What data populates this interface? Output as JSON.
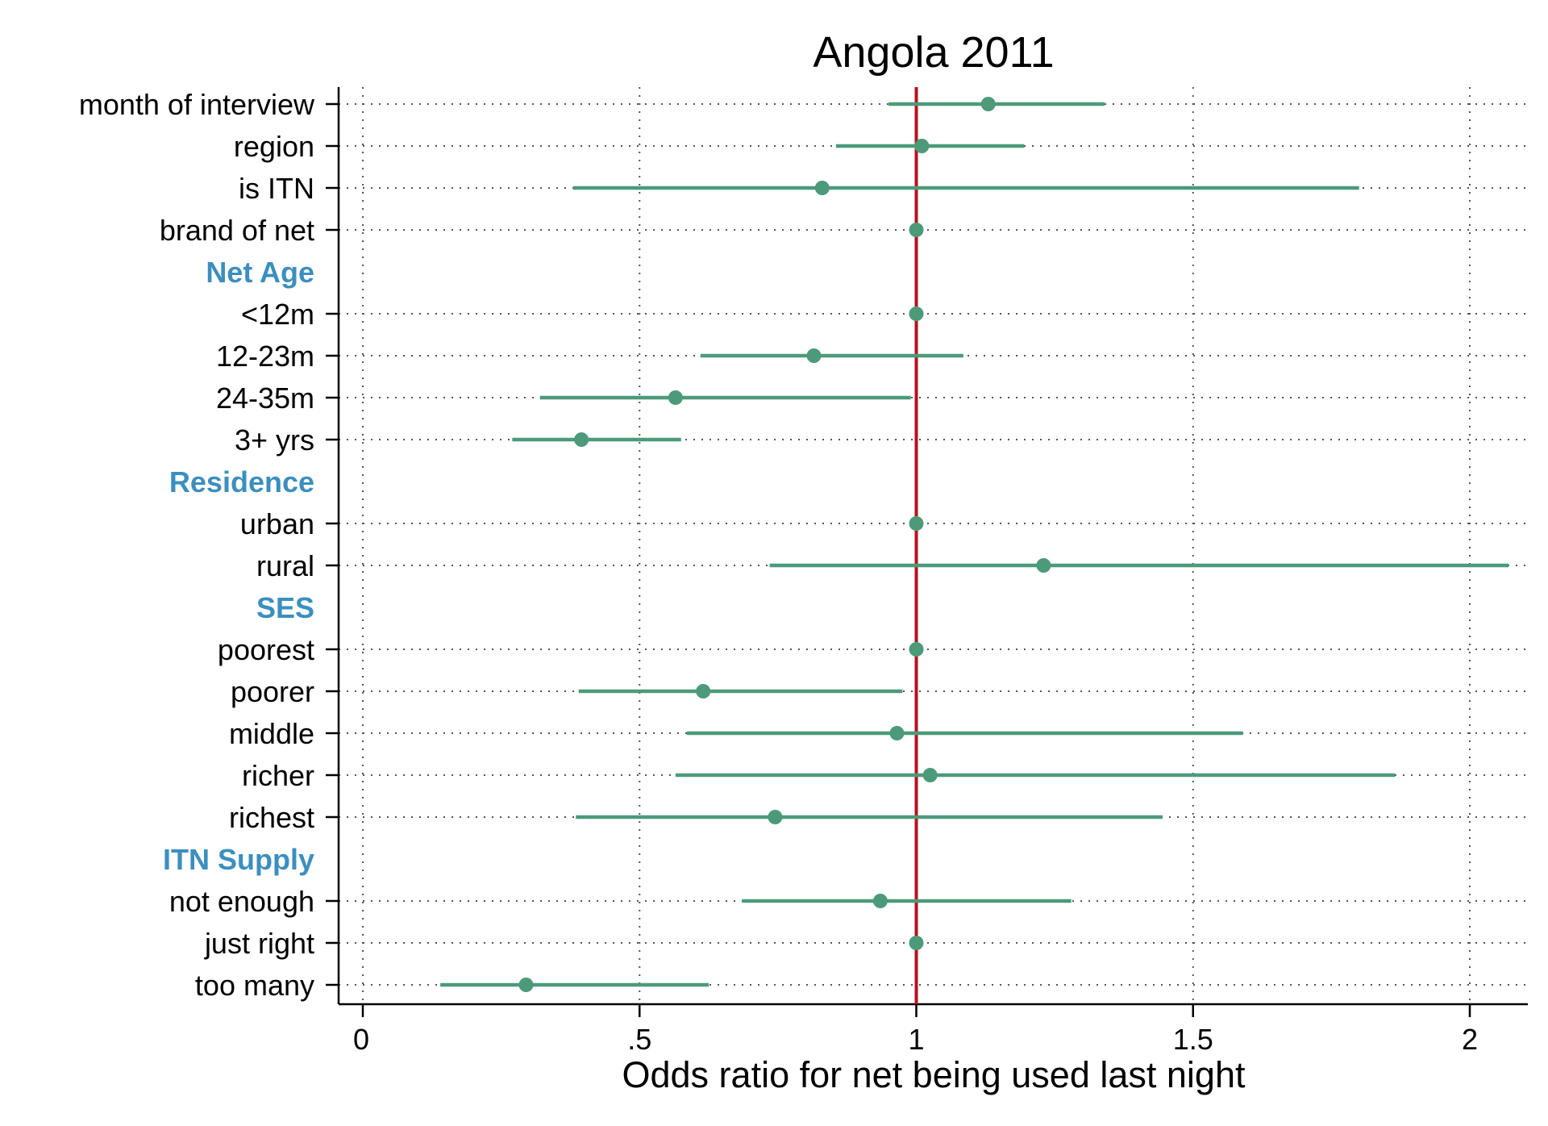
{
  "chart_data": {
    "type": "scatter",
    "title": "Angola 2011",
    "xlabel": "Odds ratio for net being used last night",
    "xlim": [
      -0.02,
      2.06
    ],
    "xticks": [
      {
        "value": 0,
        "label": "0"
      },
      {
        "value": 0.5,
        "label": ".5"
      },
      {
        "value": 1,
        "label": "1"
      },
      {
        "value": 1.5,
        "label": "1.5"
      },
      {
        "value": 2,
        "label": "2"
      }
    ],
    "reference_line": {
      "x": 1,
      "color": "#b5121b"
    },
    "grid": true,
    "marker_color": "#4c9a7a",
    "header_color": "#3b8fbe",
    "rows": [
      {
        "label": "month of interview",
        "header": false,
        "estimate": 1.13,
        "lower": 0.95,
        "upper": 1.34
      },
      {
        "label": "region",
        "header": false,
        "estimate": 1.01,
        "lower": 0.855,
        "upper": 1.195
      },
      {
        "label": "is ITN",
        "header": false,
        "estimate": 0.83,
        "lower": 0.38,
        "upper": 1.8
      },
      {
        "label": "brand of net",
        "header": false,
        "estimate": 1.0,
        "lower": null,
        "upper": null
      },
      {
        "label": "Net Age",
        "header": true
      },
      {
        "label": "<12m",
        "header": false,
        "estimate": 1.0,
        "lower": null,
        "upper": null
      },
      {
        "label": "12-23m",
        "header": false,
        "estimate": 0.815,
        "lower": 0.61,
        "upper": 1.085
      },
      {
        "label": "24-35m",
        "header": false,
        "estimate": 0.565,
        "lower": 0.32,
        "upper": 0.99
      },
      {
        "label": "3+ yrs",
        "header": false,
        "estimate": 0.395,
        "lower": 0.27,
        "upper": 0.575
      },
      {
        "label": "Residence",
        "header": true
      },
      {
        "label": "urban",
        "header": false,
        "estimate": 1.0,
        "lower": null,
        "upper": null
      },
      {
        "label": "rural",
        "header": false,
        "estimate": 1.23,
        "lower": 0.735,
        "upper": 2.07
      },
      {
        "label": "SES",
        "header": true
      },
      {
        "label": "poorest",
        "header": false,
        "estimate": 1.0,
        "lower": null,
        "upper": null
      },
      {
        "label": "poorer",
        "header": false,
        "estimate": 0.615,
        "lower": 0.39,
        "upper": 0.975
      },
      {
        "label": "middle",
        "header": false,
        "estimate": 0.965,
        "lower": 0.585,
        "upper": 1.59
      },
      {
        "label": "richer",
        "header": false,
        "estimate": 1.025,
        "lower": 0.565,
        "upper": 1.865
      },
      {
        "label": "richest",
        "header": false,
        "estimate": 0.745,
        "lower": 0.385,
        "upper": 1.445
      },
      {
        "label": "ITN Supply",
        "header": true
      },
      {
        "label": "not enough",
        "header": false,
        "estimate": 0.935,
        "lower": 0.685,
        "upper": 1.28
      },
      {
        "label": "just right",
        "header": false,
        "estimate": 1.0,
        "lower": null,
        "upper": null
      },
      {
        "label": "too many",
        "header": false,
        "estimate": 0.295,
        "lower": 0.14,
        "upper": 0.625
      }
    ]
  }
}
